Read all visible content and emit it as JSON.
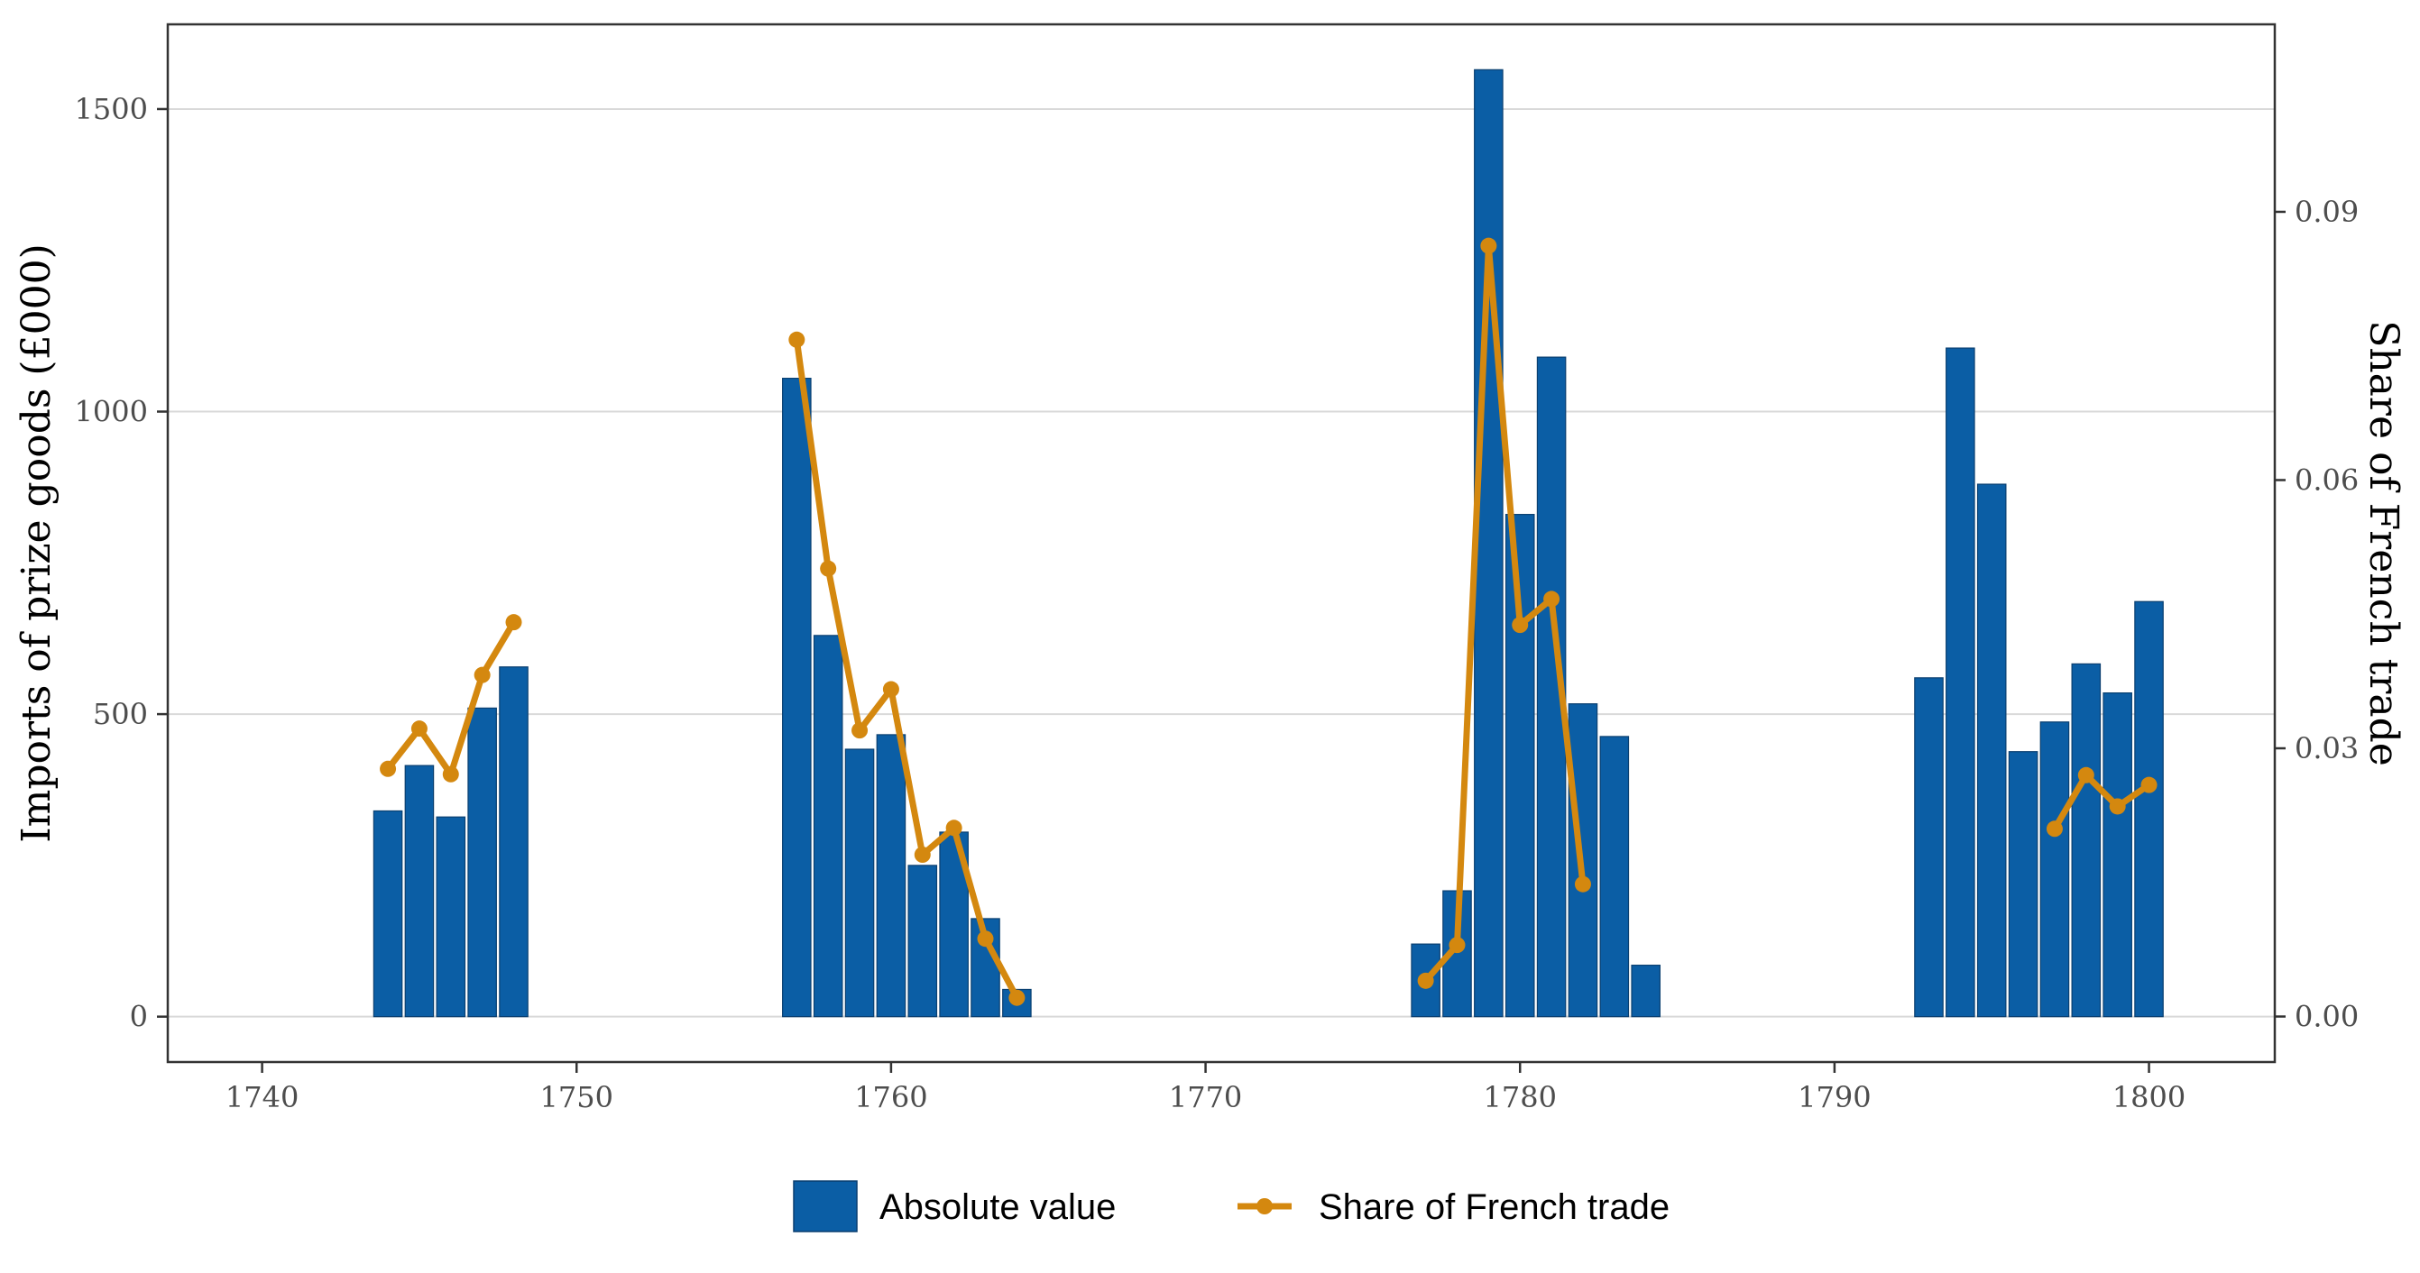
{
  "chart_data": {
    "type": "bar",
    "x": [
      1744,
      1745,
      1746,
      1747,
      1748,
      1757,
      1758,
      1759,
      1760,
      1761,
      1762,
      1763,
      1764,
      1777,
      1778,
      1779,
      1780,
      1781,
      1782,
      1783,
      1784,
      1793,
      1794,
      1795,
      1796,
      1797,
      1798,
      1799,
      1800
    ],
    "series": [
      {
        "name": "Absolute value",
        "kind": "bar",
        "axis": "left",
        "color": "#0b5ea5",
        "values": [
          340,
          415,
          330,
          510,
          578,
          1055,
          630,
          442,
          466,
          250,
          305,
          162,
          45,
          120,
          208,
          1565,
          830,
          1090,
          517,
          463,
          85,
          560,
          1105,
          880,
          438,
          487,
          583,
          535,
          686
        ]
      },
      {
        "name": "Share of French trade",
        "kind": "line",
        "axis": "right",
        "color": "#d4880f",
        "segments": [
          {
            "x": [
              1744,
              1745,
              1746,
              1747,
              1748
            ],
            "values": [
              0.0277,
              0.0322,
              0.0271,
              0.0382,
              0.0441
            ]
          },
          {
            "x": [
              1757,
              1758,
              1759,
              1760,
              1761,
              1762,
              1763,
              1764
            ],
            "values": [
              0.0757,
              0.0501,
              0.032,
              0.0366,
              0.0181,
              0.0211,
              0.0087,
              0.0021
            ]
          },
          {
            "x": [
              1777,
              1778,
              1779,
              1780,
              1781,
              1782
            ],
            "values": [
              0.004,
              0.008,
              0.0862,
              0.0438,
              0.0467,
              0.0148
            ]
          },
          {
            "x": [
              1797,
              1798,
              1799,
              1800
            ],
            "values": [
              0.021,
              0.027,
              0.0235,
              0.0259
            ]
          }
        ]
      }
    ],
    "xlim": [
      1737,
      1804
    ],
    "ylim": [
      -75,
      1640
    ],
    "y2lim": [
      -0.00509,
      0.11097
    ],
    "xticks": [
      "1740",
      "1750",
      "1760",
      "1770",
      "1780",
      "1790",
      "1800"
    ],
    "yticks": [
      "0",
      "500",
      "1000",
      "1500"
    ],
    "y2ticks": [
      "0.00",
      "0.03",
      "0.06",
      "0.09"
    ],
    "ylabel": "Imports of prize goods (£000)",
    "y2label": "Share of French trade",
    "xlabel": "",
    "title": "",
    "grid": true,
    "legend_position": "bottom",
    "legend": {
      "bar_label": "Absolute value",
      "line_label": "Share of French trade"
    }
  }
}
